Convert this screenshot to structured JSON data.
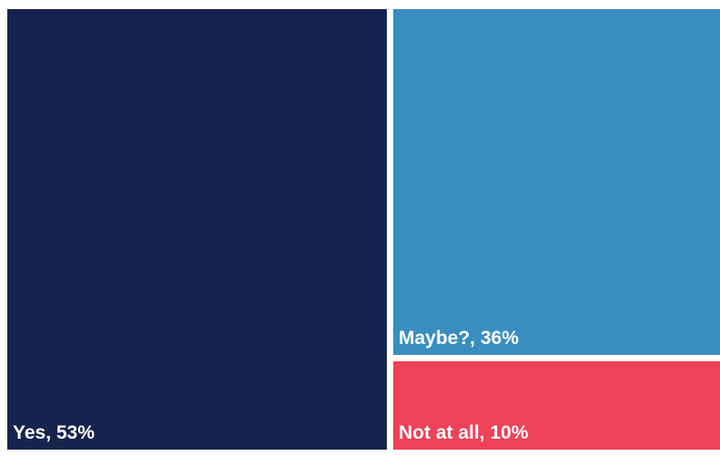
{
  "chart_data": {
    "type": "treemap",
    "title": "",
    "items": [
      {
        "label": "Yes, 53%",
        "category": "Yes",
        "value": 53,
        "color": "#16244d"
      },
      {
        "label": "Maybe?, 36%",
        "category": "Maybe?",
        "value": 36,
        "color": "#3a8ebf"
      },
      {
        "label": "Not at all, 10%",
        "category": "Not at all",
        "value": 10,
        "color": "#ef4157"
      }
    ]
  }
}
